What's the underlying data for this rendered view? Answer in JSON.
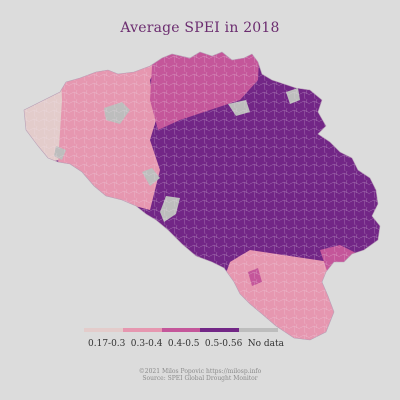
{
  "title": "Average SPEI in 2018",
  "legend": {
    "items": [
      {
        "label": "0.17-0.3",
        "color": "#e3cccb"
      },
      {
        "label": "0.3-0.4",
        "color": "#e697b0"
      },
      {
        "label": "0.4-0.5",
        "color": "#c4569a"
      },
      {
        "label": "0.5-0.56",
        "color": "#722686"
      },
      {
        "label": "No data",
        "color": "#bdbdbd"
      }
    ]
  },
  "credits": {
    "line1": "©2021 Milos Popovic https://milosp.info",
    "line2": "Source: SPEI Global Drought Monitor"
  },
  "colors": {
    "background": "#dcdcdc",
    "border": "#b9a2b8"
  }
}
